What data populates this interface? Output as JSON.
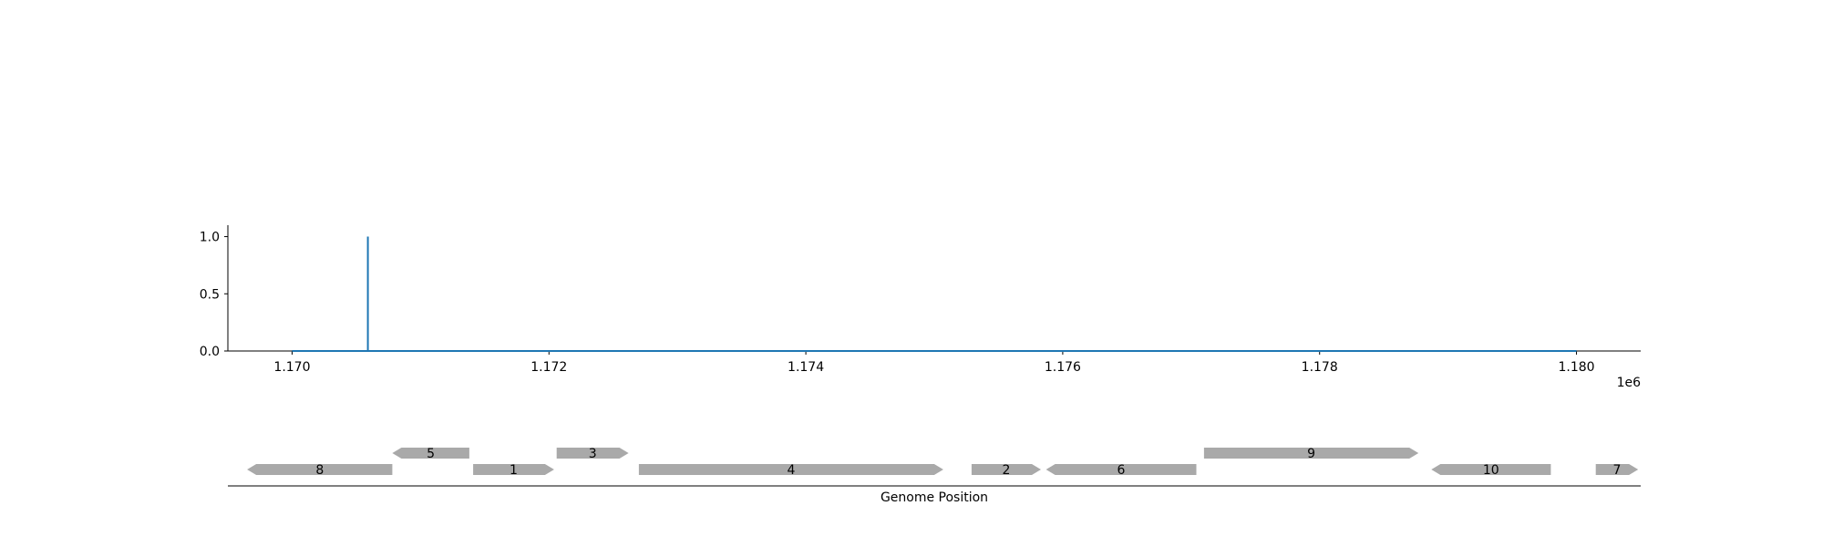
{
  "chart_data": [
    {
      "type": "line",
      "title": "",
      "xlabel": "",
      "ylabel": "",
      "x_offset_label": "1e6",
      "xlim": [
        1169500,
        1180500
      ],
      "ylim": [
        0,
        1.1
      ],
      "x_ticks": [
        1170000,
        1172000,
        1174000,
        1176000,
        1178000,
        1180000
      ],
      "x_tick_labels": [
        "1.170",
        "1.172",
        "1.174",
        "1.176",
        "1.178",
        "1.180"
      ],
      "y_ticks": [
        0.0,
        0.5,
        1.0
      ],
      "y_tick_labels": [
        "0.0",
        "0.5",
        "1.0"
      ],
      "grid": false,
      "series": [
        {
          "color": "#1f77b4",
          "x": [
            1170000,
            1170590,
            1170590,
            1170590,
            1170590,
            1180000
          ],
          "y": [
            0,
            0,
            1.0,
            1.0,
            0,
            0
          ]
        }
      ]
    },
    {
      "type": "gene_track",
      "xlabel": "Genome Position",
      "xlim": [
        1169500,
        1180500
      ],
      "color": "#a9a9a9",
      "genes": [
        {
          "label": "8",
          "start": 1169650,
          "end": 1170780,
          "strand": "-",
          "row": 0
        },
        {
          "label": "5",
          "start": 1170780,
          "end": 1171380,
          "strand": "-",
          "row": 1
        },
        {
          "label": "1",
          "start": 1171410,
          "end": 1172040,
          "strand": "+",
          "row": 0
        },
        {
          "label": "3",
          "start": 1172060,
          "end": 1172620,
          "strand": "+",
          "row": 1
        },
        {
          "label": "4",
          "start": 1172700,
          "end": 1175070,
          "strand": "+",
          "row": 0
        },
        {
          "label": "2",
          "start": 1175290,
          "end": 1175830,
          "strand": "+",
          "row": 0
        },
        {
          "label": "6",
          "start": 1175870,
          "end": 1177040,
          "strand": "-",
          "row": 0
        },
        {
          "label": "9",
          "start": 1177100,
          "end": 1178770,
          "strand": "+",
          "row": 1
        },
        {
          "label": "10",
          "start": 1178870,
          "end": 1179800,
          "strand": "-",
          "row": 0
        },
        {
          "label": "7",
          "start": 1180150,
          "end": 1180480,
          "strand": "+",
          "row": 0
        }
      ]
    }
  ]
}
